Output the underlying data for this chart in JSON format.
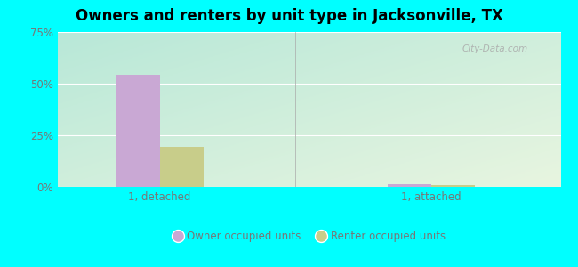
{
  "title": "Owners and renters by unit type in Jacksonville, TX",
  "title_fontsize": 12,
  "categories": [
    "1, detached",
    "1, attached"
  ],
  "owner_values": [
    54.5,
    1.5
  ],
  "renter_values": [
    19.5,
    0.8
  ],
  "owner_color": "#c9a8d4",
  "renter_color": "#c8cd8a",
  "ylim": [
    0,
    75
  ],
  "yticks": [
    0,
    25,
    50,
    75
  ],
  "yticklabels": [
    "0%",
    "25%",
    "50%",
    "75%"
  ],
  "outer_background": "#00ffff",
  "bar_width": 0.32,
  "group_positions": [
    0.75,
    2.75
  ],
  "xlim": [
    0.0,
    3.7
  ],
  "legend_owner": "Owner occupied units",
  "legend_renter": "Renter occupied units",
  "watermark": "City-Data.com",
  "grad_top_left": "#b8e8d8",
  "grad_bottom_right": "#e8f5e0"
}
